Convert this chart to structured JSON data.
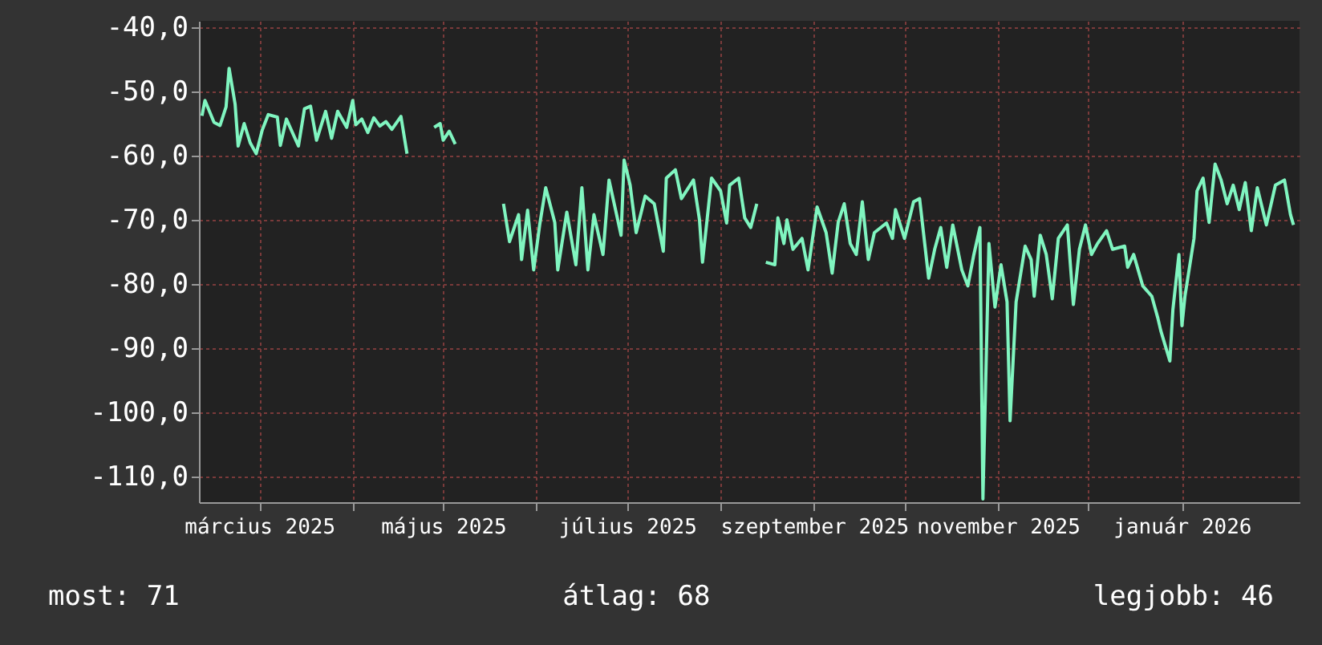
{
  "chart_data": {
    "type": "line",
    "x": [
      "2025-02-10",
      "2025-02-11",
      "2025-02-14",
      "2025-02-16",
      "2025-02-18",
      "2025-02-19",
      "2025-02-21",
      "2025-02-22",
      "2025-02-24",
      "2025-02-26",
      "2025-02-28",
      "2025-03-02",
      "2025-03-04",
      "2025-03-07",
      "2025-03-08",
      "2025-03-10",
      "2025-03-14",
      "2025-03-16",
      "2025-03-18",
      "2025-03-20",
      "2025-03-23",
      "2025-03-25",
      "2025-03-27",
      "2025-03-30",
      "2025-04-01",
      "2025-04-02",
      "2025-04-04",
      "2025-04-06",
      "2025-04-08",
      "2025-04-10",
      "2025-04-12",
      "2025-04-14",
      "2025-04-17",
      "2025-04-19",
      "2025-04-25",
      "2025-04-28",
      "2025-04-30",
      "2025-05-01",
      "2025-05-03",
      "2025-05-05",
      "2025-05-12",
      "2025-05-21",
      "2025-05-23",
      "2025-05-26",
      "2025-05-27",
      "2025-05-29",
      "2025-05-31",
      "2025-06-02",
      "2025-06-04",
      "2025-06-07",
      "2025-06-08",
      "2025-06-11",
      "2025-06-14",
      "2025-06-16",
      "2025-06-18",
      "2025-06-20",
      "2025-06-23",
      "2025-06-25",
      "2025-06-29",
      "2025-06-30",
      "2025-07-02",
      "2025-07-04",
      "2025-07-07",
      "2025-07-10",
      "2025-07-13",
      "2025-07-14",
      "2025-07-17",
      "2025-07-19",
      "2025-07-23",
      "2025-07-25",
      "2025-07-26",
      "2025-07-29",
      "2025-08-01",
      "2025-08-03",
      "2025-08-04",
      "2025-08-07",
      "2025-08-09",
      "2025-08-11",
      "2025-08-13",
      "2025-08-14",
      "2025-08-16",
      "2025-08-19",
      "2025-08-20",
      "2025-08-22",
      "2025-08-23",
      "2025-08-25",
      "2025-08-28",
      "2025-08-30",
      "2025-09-02",
      "2025-09-05",
      "2025-09-07",
      "2025-09-09",
      "2025-09-11",
      "2025-09-13",
      "2025-09-15",
      "2025-09-17",
      "2025-09-19",
      "2025-09-21",
      "2025-09-25",
      "2025-09-27",
      "2025-09-28",
      "2025-10-01",
      "2025-10-04",
      "2025-10-06",
      "2025-10-09",
      "2025-10-11",
      "2025-10-13",
      "2025-10-15",
      "2025-10-17",
      "2025-10-20",
      "2025-10-22",
      "2025-10-24",
      "2025-10-26",
      "2025-10-27",
      "2025-10-29",
      "2025-10-31",
      "2025-11-02",
      "2025-11-04",
      "2025-11-05",
      "2025-11-07",
      "2025-11-10",
      "2025-11-12",
      "2025-11-13",
      "2025-11-15",
      "2025-11-17",
      "2025-11-19",
      "2025-11-21",
      "2025-11-24",
      "2025-11-26",
      "2025-11-28",
      "2025-11-30",
      "2025-12-02",
      "2025-12-04",
      "2025-12-07",
      "2025-12-09",
      "2025-12-13",
      "2025-12-14",
      "2025-12-16",
      "2025-12-19",
      "2025-12-22",
      "2025-12-24",
      "2025-12-25",
      "2025-12-28",
      "2025-12-29",
      "2025-12-31",
      "2026-01-01",
      "2026-01-02",
      "2026-01-05",
      "2026-01-06",
      "2026-01-08",
      "2026-01-10",
      "2026-01-12",
      "2026-01-14",
      "2026-01-16",
      "2026-01-18",
      "2026-01-20",
      "2026-01-22",
      "2026-01-24",
      "2026-01-26",
      "2026-01-29",
      "2026-02-01",
      "2026-02-04",
      "2026-02-06",
      "2026-02-07"
    ],
    "series": [
      {
        "color": "#80f5c0",
        "values": [
          -53.8,
          -51.4,
          -54.8,
          -55.3,
          -52.4,
          -46.4,
          -52,
          -58.5,
          -55,
          -58,
          -59.7,
          -56,
          -53.6,
          -54,
          -58.4,
          -54.3,
          -58.5,
          -52.7,
          -52.3,
          -57.6,
          -53.1,
          -57.3,
          -53.1,
          -55.6,
          -51.4,
          -55.2,
          -54.3,
          -56.4,
          -54.1,
          -55.4,
          -54.7,
          -55.9,
          -53.9,
          -59.7,
          null,
          -55.6,
          -55,
          -57.6,
          -56.2,
          -58.2,
          null,
          -67.5,
          -73.4,
          -69.2,
          -76.2,
          -68.5,
          -77.8,
          -70.8,
          -65,
          -70.4,
          -77.8,
          -68.8,
          -77,
          -65,
          -77.8,
          -69.2,
          -75.4,
          -63.8,
          -72.4,
          -60.7,
          -64.6,
          -72,
          -66.3,
          -67.5,
          -74.9,
          -63.5,
          -62.2,
          -66.7,
          -63.8,
          -70,
          -76.6,
          -63.5,
          -65.5,
          -70.5,
          -64.6,
          -63.5,
          -69.7,
          -71.2,
          -67.5,
          null,
          -76.6,
          -77,
          -69.7,
          -73.7,
          -70,
          -74.6,
          -72.9,
          -77.8,
          -68,
          -72,
          -78.3,
          -70.4,
          -67.5,
          -73.7,
          -75.4,
          -67.2,
          -76.2,
          -72,
          -70.5,
          -72.9,
          -68.4,
          -72.9,
          -67.2,
          -66.7,
          -79.1,
          -74.6,
          -71.2,
          -77.4,
          -70.8,
          -77.8,
          -80.3,
          -75.4,
          -71.2,
          -113.5,
          -73.7,
          -83.6,
          -77,
          -82.8,
          -101.3,
          -82.8,
          -74.1,
          -76.2,
          -81.9,
          -72.4,
          -75.4,
          -82.3,
          -72.9,
          -70.8,
          -83.2,
          -74.6,
          -70.8,
          -75.4,
          -73.7,
          -71.7,
          -74.6,
          -74.1,
          -77.4,
          -75.4,
          -80.3,
          -81.9,
          -85.3,
          -87.3,
          -92,
          -84,
          -75.4,
          -86.5,
          -81.9,
          -72.9,
          -65.5,
          -63.5,
          -70.4,
          -61.3,
          -63.8,
          -67.5,
          -64.6,
          -68.4,
          -64.2,
          -71.7,
          -65,
          -70.8,
          -64.6,
          -63.8,
          -69.2,
          -70.8
        ]
      }
    ],
    "xlim": [
      "2025-02-09",
      "2026-02-09"
    ],
    "xticks": [
      {
        "value": "2025-03-01",
        "label": "március 2025"
      },
      {
        "value": "2025-04-01",
        "label": null
      },
      {
        "value": "2025-05-01",
        "label": "május 2025"
      },
      {
        "value": "2025-06-01",
        "label": null
      },
      {
        "value": "2025-07-01",
        "label": "július 2025"
      },
      {
        "value": "2025-08-01",
        "label": null
      },
      {
        "value": "2025-09-01",
        "label": "szeptember 2025"
      },
      {
        "value": "2025-10-01",
        "label": null
      },
      {
        "value": "2025-11-01",
        "label": "november 2025"
      },
      {
        "value": "2025-12-01",
        "label": null
      },
      {
        "value": "2026-01-01",
        "label": "január 2026"
      }
    ],
    "ylim": [
      -114,
      -39
    ],
    "yticks": [
      {
        "value": -40,
        "label": "-40,0"
      },
      {
        "value": -50,
        "label": "-50,0"
      },
      {
        "value": -60,
        "label": "-60,0"
      },
      {
        "value": -70,
        "label": "-70,0"
      },
      {
        "value": -80,
        "label": "-80,0"
      },
      {
        "value": -90,
        "label": "-90,0"
      },
      {
        "value": -100,
        "label": "-100,0"
      },
      {
        "value": -110,
        "label": "-110,0"
      }
    ],
    "grid": true,
    "annotations": [
      "most: 71",
      "átlag: 68",
      "legjobb: 46"
    ]
  }
}
